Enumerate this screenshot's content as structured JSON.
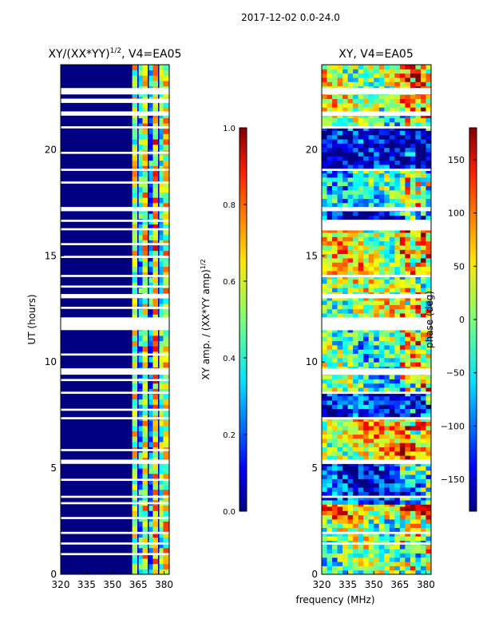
{
  "figure_title": "2017-12-02 0.0-24.0",
  "shared_xlabel": "frequency (MHz)",
  "chart_data": [
    {
      "type": "heatmap",
      "title_main": "XY/(XX*YY)",
      "title_sup": "1/2",
      "title_tail": ", V4=EA05",
      "xlabel": "",
      "ylabel": "UT (hours)",
      "xlim": [
        320,
        383
      ],
      "ylim": [
        0,
        24
      ],
      "xticks": [
        320,
        335,
        350,
        365,
        380
      ],
      "yticks": [
        0,
        5,
        10,
        15,
        20
      ],
      "colorbar": {
        "label_main": "XY amp. / (XX*YY amp)",
        "label_sup": "1/2",
        "range": [
          0.0,
          1.0
        ],
        "ticks": [
          "0.0",
          "0.2",
          "0.4",
          "0.6",
          "0.8",
          "1.0"
        ],
        "colormap": "jet"
      },
      "bright_band_mhz": [
        362,
        382
      ],
      "low_region_value": 0.0,
      "band_values": [
        {
          "freq": 363,
          "value": 0.55
        },
        {
          "freq": 366,
          "value": 0.35
        },
        {
          "freq": 369,
          "value": 0.6
        },
        {
          "freq": 372,
          "value": 0.3
        },
        {
          "freq": 375,
          "value": 0.7
        },
        {
          "freq": 378,
          "value": 0.45
        },
        {
          "freq": 381,
          "value": 0.6
        }
      ],
      "flagged_gaps_hours": [
        [
          0.9,
          1.0
        ],
        [
          1.4,
          1.5
        ],
        [
          1.9,
          2.0
        ],
        [
          2.6,
          2.7
        ],
        [
          3.3,
          3.4
        ],
        [
          3.6,
          3.7
        ],
        [
          4.4,
          4.5
        ],
        [
          5.2,
          5.4
        ],
        [
          5.8,
          5.9
        ],
        [
          7.3,
          7.4
        ],
        [
          7.7,
          7.8
        ],
        [
          8.5,
          8.6
        ],
        [
          9.1,
          9.2
        ],
        [
          9.4,
          9.7
        ],
        [
          10.3,
          10.4
        ],
        [
          11.5,
          12.1
        ],
        [
          12.5,
          12.6
        ],
        [
          13.0,
          13.2
        ],
        [
          13.5,
          13.6
        ],
        [
          14.0,
          14.1
        ],
        [
          14.9,
          15.0
        ],
        [
          15.5,
          15.6
        ],
        [
          16.2,
          16.3
        ],
        [
          16.6,
          16.7
        ],
        [
          17.1,
          17.3
        ],
        [
          18.4,
          18.5
        ],
        [
          19.0,
          19.1
        ],
        [
          19.8,
          19.9
        ],
        [
          21.0,
          21.1
        ],
        [
          21.6,
          21.8
        ],
        [
          22.2,
          22.4
        ],
        [
          22.6,
          22.9
        ]
      ]
    },
    {
      "type": "heatmap",
      "title": "XY, V4=EA05",
      "xlabel": "",
      "ylabel": "",
      "xlim": [
        320,
        383
      ],
      "ylim": [
        0,
        24
      ],
      "xticks": [
        320,
        335,
        350,
        365,
        380
      ],
      "yticks": [
        0,
        5,
        10,
        15,
        20
      ],
      "colorbar": {
        "label": "phase (deg)",
        "range": [
          -180,
          180
        ],
        "ticks": [
          "150",
          "100",
          "50",
          "0",
          "−50",
          "−100",
          "−150"
        ],
        "colormap": "jet"
      },
      "phase_blocks": [
        {
          "t0": 0.0,
          "t1": 2.6,
          "value": -10
        },
        {
          "t0": 2.6,
          "t1": 3.3,
          "value": 60
        },
        {
          "t0": 3.3,
          "t1": 5.2,
          "value": -120
        },
        {
          "t0": 5.4,
          "t1": 7.3,
          "value": 40
        },
        {
          "t0": 7.4,
          "t1": 8.5,
          "value": -140
        },
        {
          "t0": 8.6,
          "t1": 11.5,
          "value": -20
        },
        {
          "t0": 12.1,
          "t1": 14.0,
          "value": 10
        },
        {
          "t0": 14.1,
          "t1": 16.2,
          "value": 30
        },
        {
          "t0": 16.7,
          "t1": 17.1,
          "value": -150
        },
        {
          "t0": 17.3,
          "t1": 19.0,
          "value": -40
        },
        {
          "t0": 19.1,
          "t1": 21.0,
          "value": -160
        },
        {
          "t0": 21.1,
          "t1": 21.6,
          "value": -20
        },
        {
          "t0": 21.8,
          "t1": 24.0,
          "value": 20
        }
      ],
      "flagged_gaps_hours": [
        [
          1.4,
          1.5
        ],
        [
          1.9,
          2.0
        ],
        [
          3.6,
          3.7
        ],
        [
          5.2,
          5.4
        ],
        [
          7.3,
          7.4
        ],
        [
          8.5,
          8.6
        ],
        [
          9.4,
          9.7
        ],
        [
          11.5,
          12.1
        ],
        [
          13.0,
          13.2
        ],
        [
          14.0,
          14.1
        ],
        [
          16.2,
          16.7
        ],
        [
          17.1,
          17.3
        ],
        [
          19.0,
          19.1
        ],
        [
          21.0,
          21.1
        ],
        [
          21.6,
          21.8
        ],
        [
          22.6,
          22.9
        ]
      ]
    }
  ]
}
